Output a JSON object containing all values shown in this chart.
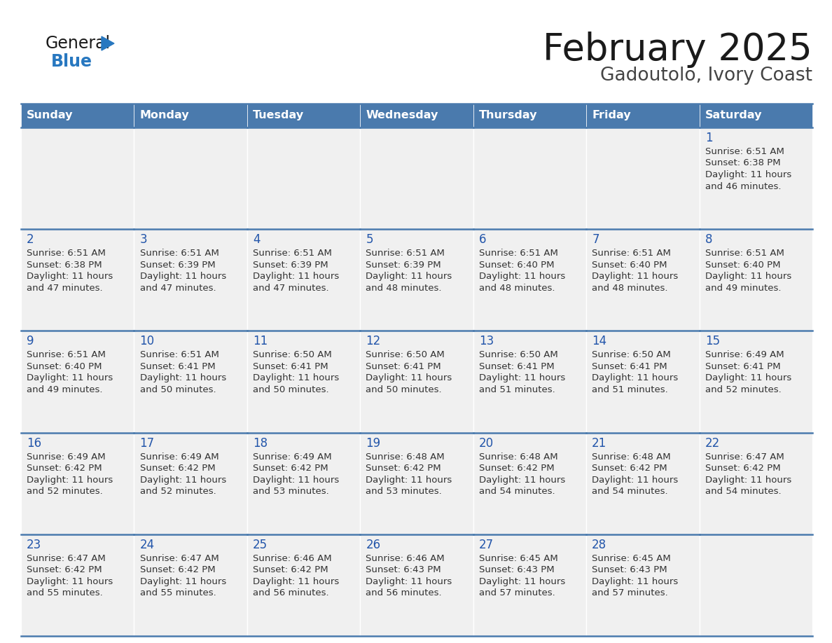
{
  "title": "February 2025",
  "subtitle": "Gadoutolo, Ivory Coast",
  "header_bg": "#4a7aad",
  "header_text_color": "#ffffff",
  "cell_bg": "#f0f0f0",
  "day_headers": [
    "Sunday",
    "Monday",
    "Tuesday",
    "Wednesday",
    "Thursday",
    "Friday",
    "Saturday"
  ],
  "title_color": "#1a1a1a",
  "subtitle_color": "#444444",
  "day_num_color": "#2255aa",
  "cell_text_color": "#333333",
  "border_color": "#4a7aad",
  "logo_general_color": "#1a1a1a",
  "logo_blue_color": "#2878c0",
  "logo_triangle_color": "#2878c0",
  "calendar": [
    [
      null,
      null,
      null,
      null,
      null,
      null,
      1
    ],
    [
      2,
      3,
      4,
      5,
      6,
      7,
      8
    ],
    [
      9,
      10,
      11,
      12,
      13,
      14,
      15
    ],
    [
      16,
      17,
      18,
      19,
      20,
      21,
      22
    ],
    [
      23,
      24,
      25,
      26,
      27,
      28,
      null
    ]
  ],
  "sun_data": {
    "1": {
      "rise": "6:51 AM",
      "set": "6:38 PM",
      "hours": 11,
      "mins": 46
    },
    "2": {
      "rise": "6:51 AM",
      "set": "6:38 PM",
      "hours": 11,
      "mins": 47
    },
    "3": {
      "rise": "6:51 AM",
      "set": "6:39 PM",
      "hours": 11,
      "mins": 47
    },
    "4": {
      "rise": "6:51 AM",
      "set": "6:39 PM",
      "hours": 11,
      "mins": 47
    },
    "5": {
      "rise": "6:51 AM",
      "set": "6:39 PM",
      "hours": 11,
      "mins": 48
    },
    "6": {
      "rise": "6:51 AM",
      "set": "6:40 PM",
      "hours": 11,
      "mins": 48
    },
    "7": {
      "rise": "6:51 AM",
      "set": "6:40 PM",
      "hours": 11,
      "mins": 48
    },
    "8": {
      "rise": "6:51 AM",
      "set": "6:40 PM",
      "hours": 11,
      "mins": 49
    },
    "9": {
      "rise": "6:51 AM",
      "set": "6:40 PM",
      "hours": 11,
      "mins": 49
    },
    "10": {
      "rise": "6:51 AM",
      "set": "6:41 PM",
      "hours": 11,
      "mins": 50
    },
    "11": {
      "rise": "6:50 AM",
      "set": "6:41 PM",
      "hours": 11,
      "mins": 50
    },
    "12": {
      "rise": "6:50 AM",
      "set": "6:41 PM",
      "hours": 11,
      "mins": 50
    },
    "13": {
      "rise": "6:50 AM",
      "set": "6:41 PM",
      "hours": 11,
      "mins": 51
    },
    "14": {
      "rise": "6:50 AM",
      "set": "6:41 PM",
      "hours": 11,
      "mins": 51
    },
    "15": {
      "rise": "6:49 AM",
      "set": "6:41 PM",
      "hours": 11,
      "mins": 52
    },
    "16": {
      "rise": "6:49 AM",
      "set": "6:42 PM",
      "hours": 11,
      "mins": 52
    },
    "17": {
      "rise": "6:49 AM",
      "set": "6:42 PM",
      "hours": 11,
      "mins": 52
    },
    "18": {
      "rise": "6:49 AM",
      "set": "6:42 PM",
      "hours": 11,
      "mins": 53
    },
    "19": {
      "rise": "6:48 AM",
      "set": "6:42 PM",
      "hours": 11,
      "mins": 53
    },
    "20": {
      "rise": "6:48 AM",
      "set": "6:42 PM",
      "hours": 11,
      "mins": 54
    },
    "21": {
      "rise": "6:48 AM",
      "set": "6:42 PM",
      "hours": 11,
      "mins": 54
    },
    "22": {
      "rise": "6:47 AM",
      "set": "6:42 PM",
      "hours": 11,
      "mins": 54
    },
    "23": {
      "rise": "6:47 AM",
      "set": "6:42 PM",
      "hours": 11,
      "mins": 55
    },
    "24": {
      "rise": "6:47 AM",
      "set": "6:42 PM",
      "hours": 11,
      "mins": 55
    },
    "25": {
      "rise": "6:46 AM",
      "set": "6:42 PM",
      "hours": 11,
      "mins": 56
    },
    "26": {
      "rise": "6:46 AM",
      "set": "6:43 PM",
      "hours": 11,
      "mins": 56
    },
    "27": {
      "rise": "6:45 AM",
      "set": "6:43 PM",
      "hours": 11,
      "mins": 57
    },
    "28": {
      "rise": "6:45 AM",
      "set": "6:43 PM",
      "hours": 11,
      "mins": 57
    }
  }
}
